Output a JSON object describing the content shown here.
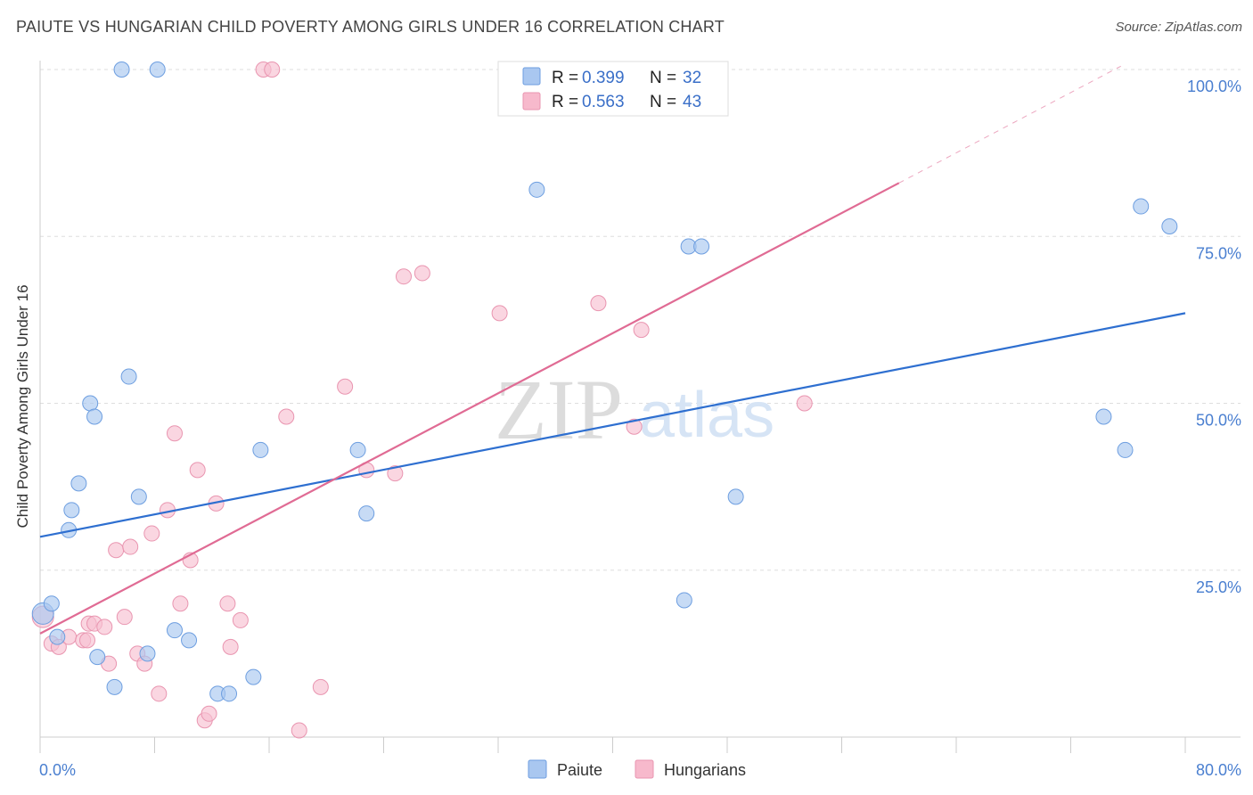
{
  "title": "PAIUTE VS HUNGARIAN CHILD POVERTY AMONG GIRLS UNDER 16 CORRELATION CHART",
  "source": "Source: ZipAtlas.com",
  "watermark": {
    "zip": "ZIP",
    "atlas": "atlas"
  },
  "legend_top": {
    "rows": [
      {
        "r_label": "R = ",
        "r_value": "0.399",
        "n_label": "N = ",
        "n_value": "32",
        "color": "#a9c7f0"
      },
      {
        "r_label": "R = ",
        "r_value": "0.563",
        "n_label": "N = ",
        "n_value": "43",
        "color": "#f7b9cc"
      }
    ]
  },
  "legend_bottom": [
    {
      "label": "Paiute",
      "color": "#a9c7f0"
    },
    {
      "label": "Hungarians",
      "color": "#f7b9cc"
    }
  ],
  "colors": {
    "paiute_fill": "#a9c7f0",
    "paiute_stroke": "#6d9ee0",
    "paiute_line": "#2e6fd0",
    "hungarian_fill": "#f7c0d1",
    "hungarian_stroke": "#e995b0",
    "hungarian_line": "#e06b94",
    "grid": "#dddddd",
    "tick_text": "#4a7fd0"
  },
  "chart_data": {
    "type": "scatter",
    "title": "PAIUTE VS HUNGARIAN CHILD POVERTY AMONG GIRLS UNDER 16 CORRELATION CHART",
    "xlabel": "",
    "ylabel": "Child Poverty Among Girls Under 16",
    "xlim": [
      0,
      80
    ],
    "ylim": [
      0,
      100
    ],
    "x_tick_labels": [
      "0.0%",
      "80.0%"
    ],
    "y_tick_labels": [
      "25.0%",
      "50.0%",
      "75.0%",
      "100.0%"
    ],
    "y_ticks": [
      25,
      50,
      75,
      100
    ],
    "grid": true,
    "legend_position": "top-center",
    "series": [
      {
        "name": "Paiute",
        "R": 0.399,
        "N": 32,
        "trend": {
          "x": [
            0,
            80
          ],
          "y": [
            30.0,
            63.5
          ]
        },
        "points": [
          [
            0.2,
            18.5
          ],
          [
            0.8,
            20.0
          ],
          [
            1.2,
            15.0
          ],
          [
            2.0,
            31.0
          ],
          [
            2.2,
            34.0
          ],
          [
            2.7,
            38.0
          ],
          [
            3.5,
            50.0
          ],
          [
            3.8,
            48.0
          ],
          [
            4.0,
            12.0
          ],
          [
            5.2,
            7.5
          ],
          [
            6.2,
            54.0
          ],
          [
            5.7,
            100.0
          ],
          [
            8.2,
            100.0
          ],
          [
            6.9,
            36.0
          ],
          [
            7.5,
            12.5
          ],
          [
            9.4,
            16.0
          ],
          [
            10.4,
            14.5
          ],
          [
            12.4,
            6.5
          ],
          [
            13.2,
            6.5
          ],
          [
            14.9,
            9.0
          ],
          [
            15.4,
            43.0
          ],
          [
            22.2,
            43.0
          ],
          [
            22.8,
            33.5
          ],
          [
            34.7,
            82.0
          ],
          [
            45.0,
            20.5
          ],
          [
            45.3,
            73.5
          ],
          [
            46.2,
            73.5
          ],
          [
            48.6,
            36.0
          ],
          [
            74.3,
            48.0
          ],
          [
            75.8,
            43.0
          ],
          [
            76.9,
            79.5
          ],
          [
            78.9,
            76.5
          ]
        ]
      },
      {
        "name": "Hungarians",
        "R": 0.563,
        "N": 43,
        "trend": {
          "x": [
            0,
            60
          ],
          "y": [
            15.5,
            83.0
          ]
        },
        "trend_dashed": {
          "x": [
            60,
            75.5
          ],
          "y": [
            83.0,
            100.5
          ]
        },
        "points": [
          [
            0.2,
            18.0
          ],
          [
            0.8,
            14.0
          ],
          [
            1.3,
            13.5
          ],
          [
            2.0,
            15.0
          ],
          [
            3.0,
            14.5
          ],
          [
            3.3,
            14.5
          ],
          [
            3.4,
            17.0
          ],
          [
            3.8,
            17.0
          ],
          [
            4.5,
            16.5
          ],
          [
            4.8,
            11.0
          ],
          [
            5.3,
            28.0
          ],
          [
            5.9,
            18.0
          ],
          [
            6.3,
            28.5
          ],
          [
            6.8,
            12.5
          ],
          [
            7.3,
            11.0
          ],
          [
            7.8,
            30.5
          ],
          [
            8.3,
            6.5
          ],
          [
            8.9,
            34.0
          ],
          [
            9.4,
            45.5
          ],
          [
            9.8,
            20.0
          ],
          [
            10.5,
            26.5
          ],
          [
            11.0,
            40.0
          ],
          [
            11.5,
            2.5
          ],
          [
            11.8,
            3.5
          ],
          [
            12.3,
            35.0
          ],
          [
            13.1,
            20.0
          ],
          [
            13.3,
            13.5
          ],
          [
            14.0,
            17.5
          ],
          [
            15.6,
            100.0
          ],
          [
            16.2,
            100.0
          ],
          [
            17.2,
            48.0
          ],
          [
            18.1,
            1.0
          ],
          [
            19.6,
            7.5
          ],
          [
            21.3,
            52.5
          ],
          [
            22.8,
            40.0
          ],
          [
            24.8,
            39.5
          ],
          [
            25.4,
            69.0
          ],
          [
            26.7,
            69.5
          ],
          [
            32.1,
            63.5
          ],
          [
            39.0,
            65.0
          ],
          [
            41.5,
            46.5
          ],
          [
            42.0,
            61.0
          ],
          [
            53.4,
            50.0
          ]
        ]
      }
    ]
  }
}
